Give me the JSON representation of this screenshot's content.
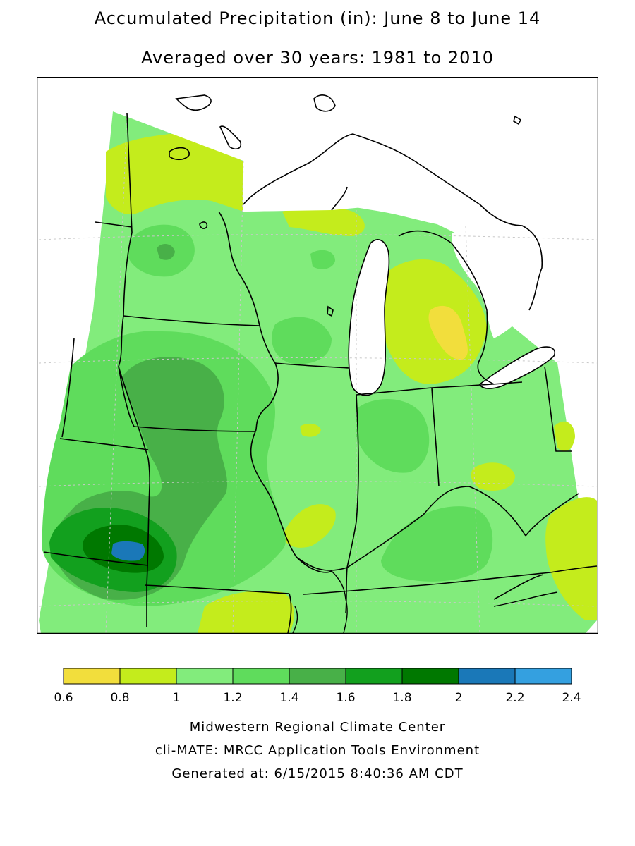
{
  "title": "Accumulated Precipitation (in): June 8 to June 14",
  "subtitle": "Averaged over 30 years: 1981 to 2010",
  "legend": {
    "breaks": [
      "0.6",
      "0.8",
      "1",
      "1.2",
      "1.4",
      "1.6",
      "1.8",
      "2",
      "2.2",
      "2.4"
    ],
    "colors": [
      "#f2de3c",
      "#c4ec1c",
      "#82ec7c",
      "#5fdc5c",
      "#48b048",
      "#12a01e",
      "#007800",
      "#1a78b8",
      "#34a0e0"
    ]
  },
  "palette": {
    "water": "#ffffff",
    "border": "#000000",
    "grid": "#c8c8c8"
  },
  "footer": {
    "line1": "Midwestern Regional Climate Center",
    "line2": "cli-MATE: MRCC Application Tools Environment",
    "line3": "Generated at: 6/15/2015 8:40:36 AM CDT"
  }
}
